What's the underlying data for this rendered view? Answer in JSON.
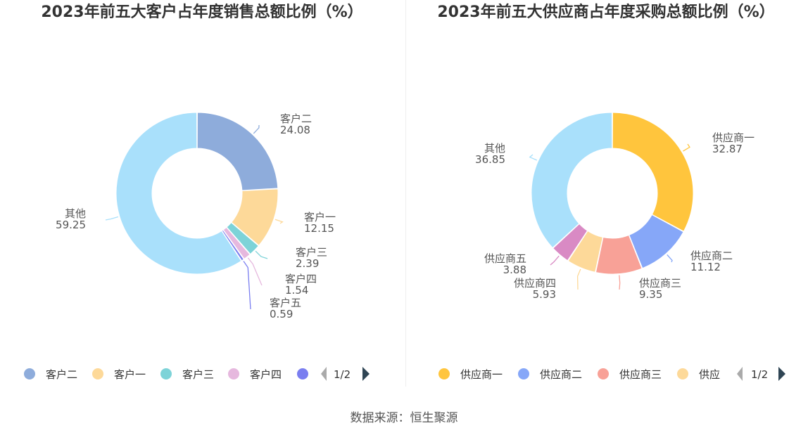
{
  "source": "数据来源：恒生聚源",
  "chart_data": [
    {
      "type": "pie",
      "donut": true,
      "title": "2023年前五大客户占年度销售总额比例（%）",
      "slices": [
        {
          "name": "客户二",
          "value": 24.08,
          "color": "#8eacdb"
        },
        {
          "name": "客户一",
          "value": 12.15,
          "color": "#fdd999"
        },
        {
          "name": "客户三",
          "value": 2.39,
          "color": "#7dd3d8"
        },
        {
          "name": "客户四",
          "value": 1.54,
          "color": "#e6b8de"
        },
        {
          "name": "客户五",
          "value": 0.59,
          "color": "#7a7ef0"
        },
        {
          "name": "其他",
          "value": 59.25,
          "color": "#a9e0fb"
        }
      ],
      "legend": {
        "position": "bottom",
        "visible_items": [
          "客户二",
          "客户一",
          "客户三",
          "客户四",
          ""
        ],
        "page": "1/2"
      }
    },
    {
      "type": "pie",
      "donut": true,
      "title": "2023年前五大供应商占年度采购总额比例（%）",
      "slices": [
        {
          "name": "供应商一",
          "value": 32.87,
          "color": "#ffc53d"
        },
        {
          "name": "供应商二",
          "value": 11.12,
          "color": "#86a7f8"
        },
        {
          "name": "供应商三",
          "value": 9.35,
          "color": "#f8a197"
        },
        {
          "name": "供应商四",
          "value": 5.93,
          "color": "#fdd999"
        },
        {
          "name": "供应商五",
          "value": 3.88,
          "color": "#d98ac4"
        },
        {
          "name": "其他",
          "value": 36.85,
          "color": "#a9e0fb"
        }
      ],
      "legend": {
        "position": "bottom",
        "visible_items": [
          "供应商一",
          "供应商二",
          "供应商三",
          "供应"
        ],
        "page": "1/2"
      }
    }
  ]
}
